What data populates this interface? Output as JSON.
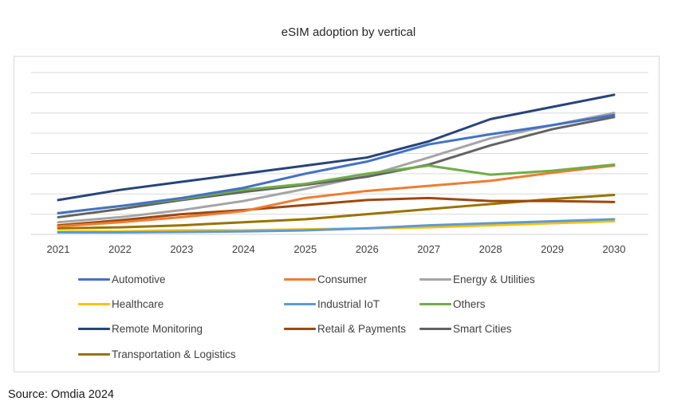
{
  "chart_data": {
    "type": "line",
    "title": "eSIM adoption by vertical",
    "xlabel": "",
    "ylabel": "",
    "x": [
      "2021",
      "2022",
      "2023",
      "2024",
      "2025",
      "2026",
      "2027",
      "2028",
      "2029",
      "2030"
    ],
    "ylim": [
      0,
      8
    ],
    "y_ticks_labeled": false,
    "grid": true,
    "legend_position": "bottom",
    "series": [
      {
        "name": "Automotive",
        "color": "#4472C4",
        "values": [
          1.05,
          1.4,
          1.8,
          2.3,
          3.0,
          3.6,
          4.45,
          4.95,
          5.4,
          5.9
        ]
      },
      {
        "name": "Consumer",
        "color": "#ED7D31",
        "values": [
          0.4,
          0.6,
          0.85,
          1.15,
          1.8,
          2.15,
          2.4,
          2.65,
          3.05,
          3.4
        ]
      },
      {
        "name": "Energy & Utilities",
        "color": "#A5A5A5",
        "values": [
          0.6,
          0.85,
          1.2,
          1.65,
          2.25,
          2.9,
          3.8,
          4.75,
          5.4,
          6.0
        ]
      },
      {
        "name": "Healthcare",
        "color": "#FFC000",
        "values": [
          0.15,
          0.15,
          0.2,
          0.2,
          0.25,
          0.3,
          0.35,
          0.45,
          0.55,
          0.65
        ]
      },
      {
        "name": "Industrial IoT",
        "color": "#5B9BD5",
        "values": [
          0.1,
          0.1,
          0.12,
          0.15,
          0.2,
          0.3,
          0.45,
          0.55,
          0.65,
          0.75
        ]
      },
      {
        "name": "Others",
        "color": "#70AD47",
        "values": [
          1.05,
          1.4,
          1.75,
          2.2,
          2.5,
          3.0,
          3.4,
          2.95,
          3.15,
          3.45
        ]
      },
      {
        "name": "Remote Monitoring",
        "color": "#264478",
        "values": [
          1.7,
          2.2,
          2.6,
          3.0,
          3.4,
          3.8,
          4.6,
          5.7,
          6.3,
          6.9
        ]
      },
      {
        "name": "Retail & Payments",
        "color": "#9E480E",
        "values": [
          0.45,
          0.7,
          1.0,
          1.2,
          1.45,
          1.7,
          1.8,
          1.65,
          1.65,
          1.6
        ]
      },
      {
        "name": "Smart Cities",
        "color": "#636363",
        "values": [
          0.85,
          1.25,
          1.7,
          2.1,
          2.45,
          2.85,
          3.45,
          4.4,
          5.2,
          5.8
        ]
      },
      {
        "name": "Transportation & Logistics",
        "color": "#997300",
        "values": [
          0.3,
          0.35,
          0.45,
          0.6,
          0.75,
          1.0,
          1.25,
          1.5,
          1.75,
          1.95
        ]
      }
    ]
  },
  "source": "Source: Omdia 2024"
}
